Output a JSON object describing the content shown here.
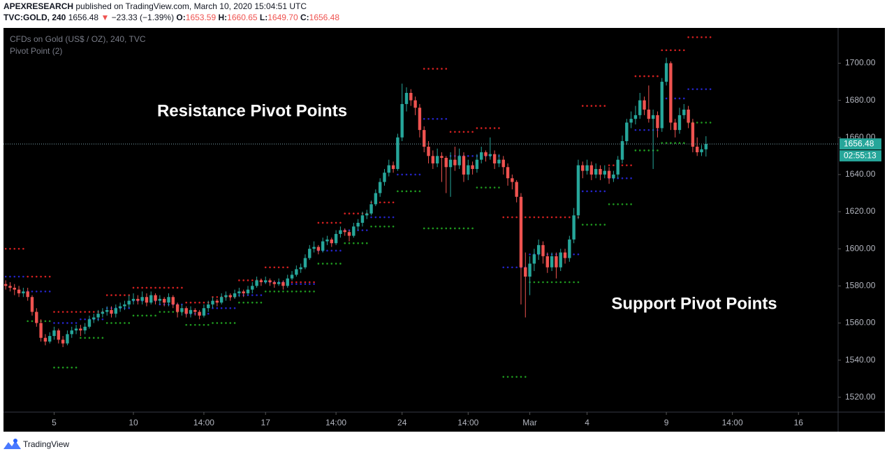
{
  "header": {
    "author": "APEXRESEARCH",
    "published": "published on TradingView.com, March 10, 2020 15:04:51 UTC",
    "symbol": "TVC:GOLD, 240",
    "last": "1656.48",
    "arrow": "▼",
    "change": "−23.33 (−1.39%)",
    "o_label": "O:",
    "o": "1653.59",
    "h_label": "H:",
    "h": "1660.65",
    "l_label": "L:",
    "l": "1649.70",
    "c_label": "C:",
    "c": "1656.48"
  },
  "chart_data": {
    "type": "candlestick",
    "legend": [
      "CFDs on Gold (US$ / OZ), 240, TVC",
      "Pivot Point (2)"
    ],
    "annotations": [
      "Resistance Pivot Points",
      "Support Pivot Points"
    ],
    "countdown": "02:55:13",
    "up_color": "#26a69a",
    "down_color": "#ef5350",
    "pivot_colors": {
      "r": "#d42020",
      "p": "#2424c8",
      "s": "#1f9a1f"
    },
    "grid": false,
    "xlim": [
      -0.5,
      189
    ],
    "xticks": [
      {
        "value": 11,
        "label": "5"
      },
      {
        "value": 29,
        "label": "10"
      },
      {
        "value": 45,
        "label": "14:00"
      },
      {
        "value": 59,
        "label": "17"
      },
      {
        "value": 75,
        "label": "14:00"
      },
      {
        "value": 90,
        "label": "24"
      },
      {
        "value": 105,
        "label": "14:00"
      },
      {
        "value": 119,
        "label": "Mar"
      },
      {
        "value": 132,
        "label": "4"
      },
      {
        "value": 150,
        "label": "9"
      },
      {
        "value": 165,
        "label": "14:00"
      },
      {
        "value": 180,
        "label": "16"
      }
    ],
    "ylim": [
      1512,
      1719
    ],
    "yticks": [
      {
        "value": 1520,
        "label": "1520.00"
      },
      {
        "value": 1540,
        "label": "1540.00"
      },
      {
        "value": 1560,
        "label": "1560.00"
      },
      {
        "value": 1580,
        "label": "1580.00"
      },
      {
        "value": 1600,
        "label": "1600.00"
      },
      {
        "value": 1620,
        "label": "1620.00"
      },
      {
        "value": 1640,
        "label": "1640.00"
      },
      {
        "value": 1660,
        "label": "1660.00"
      },
      {
        "value": 1680,
        "label": "1680.00"
      },
      {
        "value": 1700,
        "label": "1700.00"
      }
    ],
    "candles": [
      [
        1581,
        1583,
        1578,
        1580
      ],
      [
        1580,
        1582,
        1577,
        1579
      ],
      [
        1579,
        1581,
        1575,
        1578
      ],
      [
        1578,
        1580,
        1574,
        1576
      ],
      [
        1576,
        1579,
        1574,
        1577
      ],
      [
        1577,
        1579,
        1572,
        1574
      ],
      [
        1574,
        1575,
        1564,
        1566
      ],
      [
        1566,
        1568,
        1558,
        1560
      ],
      [
        1560,
        1562,
        1550,
        1552
      ],
      [
        1552,
        1554,
        1548,
        1550
      ],
      [
        1550,
        1555,
        1549,
        1553
      ],
      [
        1553,
        1558,
        1551,
        1556
      ],
      [
        1556,
        1557,
        1549,
        1551
      ],
      [
        1551,
        1553,
        1547,
        1549
      ],
      [
        1549,
        1556,
        1548,
        1554
      ],
      [
        1554,
        1558,
        1552,
        1556
      ],
      [
        1556,
        1559,
        1554,
        1557
      ],
      [
        1557,
        1559,
        1553,
        1556
      ],
      [
        1556,
        1560,
        1554,
        1558
      ],
      [
        1558,
        1564,
        1557,
        1562
      ],
      [
        1562,
        1565,
        1560,
        1563
      ],
      [
        1563,
        1567,
        1561,
        1565
      ],
      [
        1565,
        1568,
        1563,
        1566
      ],
      [
        1566,
        1569,
        1564,
        1567
      ],
      [
        1567,
        1569,
        1563,
        1565
      ],
      [
        1565,
        1570,
        1563,
        1568
      ],
      [
        1568,
        1571,
        1566,
        1569
      ],
      [
        1569,
        1572,
        1567,
        1570
      ],
      [
        1570,
        1575,
        1568,
        1572
      ],
      [
        1572,
        1576,
        1570,
        1573
      ],
      [
        1573,
        1575,
        1570,
        1572
      ],
      [
        1572,
        1577,
        1570,
        1574
      ],
      [
        1574,
        1576,
        1569,
        1571
      ],
      [
        1571,
        1577,
        1570,
        1575
      ],
      [
        1575,
        1576,
        1570,
        1572
      ],
      [
        1572,
        1575,
        1570,
        1573
      ],
      [
        1573,
        1574,
        1569,
        1571
      ],
      [
        1571,
        1576,
        1569,
        1574
      ],
      [
        1574,
        1575,
        1568,
        1570
      ],
      [
        1570,
        1571,
        1563,
        1566
      ],
      [
        1566,
        1570,
        1564,
        1568
      ],
      [
        1568,
        1569,
        1563,
        1565
      ],
      [
        1565,
        1569,
        1563,
        1567
      ],
      [
        1567,
        1568,
        1564,
        1566
      ],
      [
        1566,
        1567,
        1562,
        1564
      ],
      [
        1564,
        1570,
        1563,
        1568
      ],
      [
        1568,
        1572,
        1566,
        1570
      ],
      [
        1570,
        1574,
        1568,
        1572
      ],
      [
        1572,
        1573,
        1569,
        1571
      ],
      [
        1571,
        1576,
        1570,
        1574
      ],
      [
        1574,
        1577,
        1572,
        1575
      ],
      [
        1575,
        1576,
        1572,
        1574
      ],
      [
        1574,
        1578,
        1573,
        1576
      ],
      [
        1576,
        1579,
        1574,
        1577
      ],
      [
        1577,
        1578,
        1574,
        1576
      ],
      [
        1576,
        1580,
        1575,
        1578
      ],
      [
        1578,
        1582,
        1576,
        1580
      ],
      [
        1580,
        1585,
        1579,
        1583
      ],
      [
        1583,
        1584,
        1580,
        1582
      ],
      [
        1582,
        1585,
        1581,
        1583
      ],
      [
        1583,
        1584,
        1580,
        1582
      ],
      [
        1582,
        1583,
        1579,
        1581
      ],
      [
        1581,
        1584,
        1580,
        1582
      ],
      [
        1582,
        1583,
        1578,
        1580
      ],
      [
        1580,
        1586,
        1579,
        1584
      ],
      [
        1584,
        1588,
        1583,
        1586
      ],
      [
        1586,
        1591,
        1585,
        1589
      ],
      [
        1589,
        1592,
        1587,
        1590
      ],
      [
        1590,
        1597,
        1589,
        1595
      ],
      [
        1595,
        1602,
        1594,
        1600
      ],
      [
        1600,
        1604,
        1598,
        1601
      ],
      [
        1601,
        1602,
        1597,
        1599
      ],
      [
        1599,
        1606,
        1598,
        1604
      ],
      [
        1604,
        1607,
        1602,
        1605
      ],
      [
        1605,
        1606,
        1601,
        1603
      ],
      [
        1603,
        1610,
        1602,
        1608
      ],
      [
        1608,
        1612,
        1606,
        1610
      ],
      [
        1610,
        1611,
        1607,
        1609
      ],
      [
        1609,
        1610,
        1604,
        1607
      ],
      [
        1607,
        1614,
        1606,
        1612
      ],
      [
        1612,
        1616,
        1610,
        1614
      ],
      [
        1614,
        1620,
        1612,
        1618
      ],
      [
        1618,
        1621,
        1616,
        1619
      ],
      [
        1619,
        1626,
        1618,
        1624
      ],
      [
        1624,
        1632,
        1623,
        1630
      ],
      [
        1630,
        1638,
        1628,
        1636
      ],
      [
        1636,
        1643,
        1634,
        1641
      ],
      [
        1641,
        1648,
        1639,
        1645
      ],
      [
        1645,
        1647,
        1641,
        1643
      ],
      [
        1643,
        1662,
        1642,
        1660
      ],
      [
        1660,
        1689,
        1658,
        1678
      ],
      [
        1678,
        1687,
        1674,
        1684
      ],
      [
        1684,
        1686,
        1677,
        1680
      ],
      [
        1680,
        1682,
        1672,
        1676
      ],
      [
        1676,
        1678,
        1660,
        1664
      ],
      [
        1664,
        1666,
        1652,
        1655
      ],
      [
        1655,
        1658,
        1646,
        1650
      ],
      [
        1650,
        1653,
        1643,
        1646
      ],
      [
        1646,
        1654,
        1644,
        1650
      ],
      [
        1650,
        1652,
        1636,
        1649
      ],
      [
        1649,
        1650,
        1630,
        1644
      ],
      [
        1644,
        1652,
        1628,
        1648
      ],
      [
        1648,
        1655,
        1642,
        1645
      ],
      [
        1645,
        1654,
        1643,
        1650
      ],
      [
        1650,
        1652,
        1636,
        1640
      ],
      [
        1640,
        1648,
        1637,
        1645
      ],
      [
        1645,
        1647,
        1640,
        1643
      ],
      [
        1643,
        1651,
        1641,
        1648
      ],
      [
        1648,
        1655,
        1646,
        1652
      ],
      [
        1652,
        1653,
        1647,
        1650
      ],
      [
        1650,
        1660,
        1648,
        1651
      ],
      [
        1651,
        1653,
        1643,
        1646
      ],
      [
        1646,
        1651,
        1644,
        1648
      ],
      [
        1648,
        1650,
        1640,
        1644
      ],
      [
        1644,
        1646,
        1634,
        1638
      ],
      [
        1638,
        1640,
        1632,
        1636
      ],
      [
        1636,
        1637,
        1625,
        1628
      ],
      [
        1628,
        1630,
        1570,
        1590
      ],
      [
        1590,
        1598,
        1563,
        1585
      ],
      [
        1585,
        1596,
        1575,
        1592
      ],
      [
        1592,
        1600,
        1588,
        1597
      ],
      [
        1597,
        1605,
        1594,
        1602
      ],
      [
        1602,
        1604,
        1592,
        1596
      ],
      [
        1596,
        1598,
        1587,
        1590
      ],
      [
        1590,
        1598,
        1588,
        1596
      ],
      [
        1596,
        1598,
        1584,
        1590
      ],
      [
        1590,
        1600,
        1588,
        1598
      ],
      [
        1598,
        1600,
        1592,
        1595
      ],
      [
        1595,
        1607,
        1593,
        1605
      ],
      [
        1605,
        1622,
        1603,
        1618
      ],
      [
        1618,
        1648,
        1616,
        1645
      ],
      [
        1645,
        1647,
        1638,
        1642
      ],
      [
        1642,
        1648,
        1640,
        1645
      ],
      [
        1645,
        1647,
        1637,
        1640
      ],
      [
        1640,
        1646,
        1638,
        1643
      ],
      [
        1643,
        1645,
        1637,
        1640
      ],
      [
        1640,
        1645,
        1638,
        1642
      ],
      [
        1642,
        1644,
        1635,
        1638
      ],
      [
        1638,
        1642,
        1636,
        1640
      ],
      [
        1640,
        1650,
        1638,
        1648
      ],
      [
        1648,
        1661,
        1646,
        1658
      ],
      [
        1658,
        1670,
        1656,
        1668
      ],
      [
        1668,
        1674,
        1665,
        1670
      ],
      [
        1670,
        1677,
        1667,
        1672
      ],
      [
        1672,
        1684,
        1670,
        1680
      ],
      [
        1680,
        1682,
        1672,
        1675
      ],
      [
        1675,
        1688,
        1668,
        1670
      ],
      [
        1670,
        1675,
        1643,
        1672
      ],
      [
        1672,
        1674,
        1660,
        1665
      ],
      [
        1665,
        1692,
        1663,
        1690
      ],
      [
        1690,
        1703,
        1688,
        1700
      ],
      [
        1700,
        1701,
        1664,
        1668
      ],
      [
        1668,
        1670,
        1660,
        1664
      ],
      [
        1664,
        1676,
        1662,
        1672
      ],
      [
        1672,
        1678,
        1670,
        1675
      ],
      [
        1675,
        1677,
        1665,
        1668
      ],
      [
        1668,
        1670,
        1652,
        1655
      ],
      [
        1655,
        1660,
        1650,
        1652
      ],
      [
        1652,
        1656,
        1650,
        1653.59
      ],
      [
        1653.59,
        1660.65,
        1649.7,
        1656.48
      ]
    ],
    "pivots": [
      {
        "from": 0,
        "to": 4,
        "r": 1600,
        "p": 1585,
        "s": null
      },
      {
        "from": 5,
        "to": 10,
        "r": 1585,
        "p": 1577,
        "s": 1561
      },
      {
        "from": 11,
        "to": 16,
        "r": 1566,
        "p": 1560,
        "s": 1536
      },
      {
        "from": 17,
        "to": 22,
        "r": 1566,
        "p": 1562,
        "s": 1552
      },
      {
        "from": 23,
        "to": 28,
        "r": 1575,
        "p": 1568,
        "s": 1560
      },
      {
        "from": 29,
        "to": 34,
        "r": 1579,
        "p": 1572,
        "s": 1564
      },
      {
        "from": 35,
        "to": 40,
        "r": 1579,
        "p": 1570,
        "s": 1566
      },
      {
        "from": 41,
        "to": 46,
        "r": 1571,
        "p": 1565,
        "s": 1559
      },
      {
        "from": 47,
        "to": 52,
        "r": 1574,
        "p": 1568,
        "s": 1560
      },
      {
        "from": 53,
        "to": 58,
        "r": 1583,
        "p": 1575,
        "s": 1571
      },
      {
        "from": 59,
        "to": 64,
        "r": 1590,
        "p": 1582,
        "s": 1577
      },
      {
        "from": 65,
        "to": 70,
        "r": 1582,
        "p": 1581,
        "s": 1577
      },
      {
        "from": 71,
        "to": 76,
        "r": 1614,
        "p": 1599,
        "s": 1592
      },
      {
        "from": 77,
        "to": 82,
        "r": 1619,
        "p": 1610,
        "s": 1603
      },
      {
        "from": 83,
        "to": 88,
        "r": 1625,
        "p": 1617,
        "s": 1612
      },
      {
        "from": 89,
        "to": 94,
        "r": null,
        "p": 1640,
        "s": 1631
      },
      {
        "from": 95,
        "to": 100,
        "r": 1697,
        "p": 1670,
        "s": 1611
      },
      {
        "from": 101,
        "to": 106,
        "r": 1663,
        "p": 1650,
        "s": 1611
      },
      {
        "from": 107,
        "to": 112,
        "r": 1665,
        "p": 1650,
        "s": 1633
      },
      {
        "from": 113,
        "to": 118,
        "r": 1617,
        "p": 1590,
        "s": 1531
      },
      {
        "from": 119,
        "to": 124,
        "r": 1617,
        "p": 1597,
        "s": 1582
      },
      {
        "from": 125,
        "to": 130,
        "r": 1617,
        "p": 1597,
        "s": 1582
      },
      {
        "from": 131,
        "to": 136,
        "r": 1677,
        "p": 1631,
        "s": 1613
      },
      {
        "from": 137,
        "to": 142,
        "r": 1645,
        "p": 1638,
        "s": 1624
      },
      {
        "from": 143,
        "to": 148,
        "r": 1693,
        "p": 1664,
        "s": 1653
      },
      {
        "from": 149,
        "to": 154,
        "r": 1707,
        "p": 1681,
        "s": 1657
      },
      {
        "from": 155,
        "to": 160,
        "r": 1714,
        "p": 1686,
        "s": 1668
      }
    ]
  },
  "footer": {
    "brand": "TradingView"
  }
}
